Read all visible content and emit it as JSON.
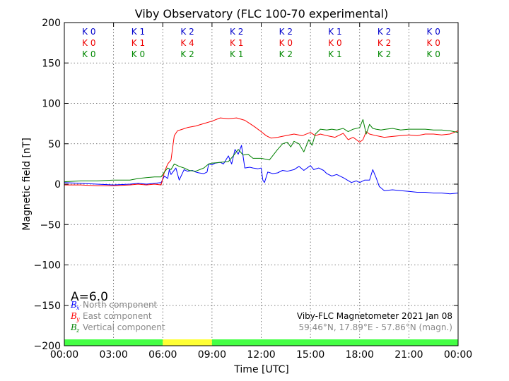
{
  "chart_data": {
    "type": "line",
    "title": "Viby Observatory (FLC 100-70 experimental)",
    "xlabel": "Time [UTC]",
    "ylabel": "Magnetic field [nT]",
    "xlim_hours": [
      0,
      24
    ],
    "ylim": [
      -200,
      200
    ],
    "grid": true,
    "x_ticks": [
      {
        "hour": 0,
        "label": "00:00"
      },
      {
        "hour": 3,
        "label": "03:00"
      },
      {
        "hour": 6,
        "label": "06:00"
      },
      {
        "hour": 9,
        "label": "09:00"
      },
      {
        "hour": 12,
        "label": "12:00"
      },
      {
        "hour": 15,
        "label": "15:00"
      },
      {
        "hour": 18,
        "label": "18:00"
      },
      {
        "hour": 21,
        "label": "21:00"
      },
      {
        "hour": 24,
        "label": "00:00"
      }
    ],
    "y_ticks": [
      {
        "value": 200,
        "label": "200"
      },
      {
        "value": 150,
        "label": "150"
      },
      {
        "value": 100,
        "label": "100"
      },
      {
        "value": 50,
        "label": "50"
      },
      {
        "value": 0,
        "label": "0"
      },
      {
        "value": -50,
        "label": "−50"
      },
      {
        "value": -100,
        "label": "−100"
      },
      {
        "value": -150,
        "label": "−150"
      },
      {
        "value": -200,
        "label": "−200"
      }
    ],
    "k_indices": {
      "x": {
        "color": "#0000cc",
        "labels": [
          "K 0",
          "K 1",
          "K 2",
          "K 2",
          "K 2",
          "K 1",
          "K 2",
          "K 0"
        ]
      },
      "y": {
        "color": "#ee0000",
        "labels": [
          "K 0",
          "K 1",
          "K 4",
          "K 1",
          "K 0",
          "K 0",
          "K 2",
          "K 0"
        ]
      },
      "z": {
        "color": "#008800",
        "labels": [
          "K 0",
          "K 0",
          "K 2",
          "K 1",
          "K 2",
          "K 1",
          "K 2",
          "K 0"
        ]
      }
    },
    "a_index": "A=6.0",
    "legend": {
      "placement": "lower-left",
      "items": [
        {
          "symbol": "B",
          "sub": "x",
          "label": "North component",
          "color": "#0000ff"
        },
        {
          "symbol": "B",
          "sub": "y",
          "label": "East component",
          "color": "#ff0000"
        },
        {
          "symbol": "B",
          "sub": "z",
          "label": "Vertical component",
          "color": "#008000"
        }
      ]
    },
    "station_line1": "Viby-FLC Magnetometer 2021 Jan 08",
    "station_line2": "59.46°N, 17.89°E - 57.86°N (magn.)",
    "activity_bar": [
      {
        "from": 0,
        "to": 6,
        "color": "#44ff44"
      },
      {
        "from": 6,
        "to": 9,
        "color": "#ffff33"
      },
      {
        "from": 9,
        "to": 24,
        "color": "#44ff44"
      }
    ],
    "series": [
      {
        "name": "North component",
        "color": "#0000ff",
        "x": [
          0,
          1,
          2,
          3,
          4,
          4.5,
          5,
          5.5,
          5.9,
          6.1,
          6.3,
          6.4,
          6.5,
          6.8,
          7,
          7.3,
          7.5,
          7.8,
          8,
          8.2,
          8.5,
          8.7,
          8.8,
          9,
          9.2,
          9.5,
          9.7,
          10,
          10.2,
          10.4,
          10.6,
          10.8,
          11,
          11.3,
          11.5,
          11.8,
          12,
          12.1,
          12.2,
          12.4,
          12.7,
          13,
          13.3,
          13.6,
          14,
          14.3,
          14.6,
          15,
          15.2,
          15.5,
          15.8,
          16,
          16.3,
          16.6,
          17,
          17.5,
          17.8,
          18,
          18.3,
          18.6,
          18.8,
          19,
          19.2,
          19.5,
          20,
          20.5,
          21,
          21.5,
          22,
          22.5,
          23,
          23.5,
          24
        ],
        "y": [
          2,
          1,
          0,
          -1,
          0,
          1,
          0,
          1,
          2,
          10,
          7,
          18,
          12,
          20,
          5,
          18,
          16,
          17,
          15,
          14,
          13,
          15,
          25,
          24,
          26,
          27,
          25,
          35,
          25,
          43,
          37,
          48,
          20,
          21,
          20,
          19,
          20,
          5,
          2,
          15,
          13,
          14,
          17,
          16,
          18,
          22,
          17,
          23,
          18,
          20,
          17,
          13,
          10,
          12,
          8,
          2,
          4,
          2,
          5,
          5,
          18,
          8,
          -3,
          -8,
          -7,
          -8,
          -9,
          -10,
          -10,
          -11,
          -11,
          -12,
          -11
        ]
      },
      {
        "name": "East component",
        "color": "#ff0000",
        "x": [
          0,
          1,
          2,
          3,
          4,
          4.5,
          5,
          5.5,
          5.9,
          6.1,
          6.3,
          6.5,
          6.7,
          6.9,
          7.2,
          7.5,
          8,
          8.5,
          9,
          9.5,
          10,
          10.5,
          11,
          11.3,
          11.6,
          12,
          12.3,
          12.6,
          13,
          13.5,
          14,
          14.5,
          15,
          15.3,
          15.6,
          16,
          16.5,
          17,
          17.3,
          17.6,
          18,
          18.2,
          18.4,
          18.6,
          19,
          19.5,
          20,
          20.5,
          21,
          21.5,
          22,
          22.5,
          23,
          23.5,
          24
        ],
        "y": [
          -1,
          -1,
          -2,
          -2,
          -1,
          0,
          -1,
          0,
          -1,
          15,
          25,
          30,
          60,
          66,
          68,
          70,
          72,
          75,
          78,
          82,
          81,
          82,
          79,
          75,
          71,
          65,
          60,
          57,
          58,
          60,
          62,
          60,
          64,
          60,
          62,
          60,
          58,
          63,
          55,
          58,
          52,
          55,
          65,
          62,
          60,
          58,
          59,
          60,
          61,
          60,
          62,
          62,
          61,
          62,
          66
        ]
      },
      {
        "name": "Vertical component",
        "color": "#008000",
        "x": [
          0,
          1,
          2,
          3,
          4,
          4.5,
          5,
          5.5,
          5.9,
          6.1,
          6.3,
          6.5,
          6.7,
          7,
          7.3,
          7.6,
          8,
          8.5,
          8.8,
          9,
          9.5,
          10,
          10.3,
          10.6,
          10.9,
          11.2,
          11.5,
          12,
          12.5,
          13,
          13.3,
          13.6,
          13.8,
          14,
          14.3,
          14.6,
          14.9,
          15.1,
          15.3,
          15.6,
          16,
          16.3,
          16.6,
          17,
          17.3,
          17.6,
          18,
          18.2,
          18.4,
          18.6,
          18.8,
          19,
          19.3,
          19.6,
          20,
          20.5,
          21,
          21.5,
          22,
          22.5,
          23,
          23.5,
          24
        ],
        "y": [
          3,
          4,
          4,
          5,
          5,
          7,
          8,
          9,
          9,
          15,
          20,
          18,
          25,
          22,
          20,
          17,
          16,
          20,
          25,
          26,
          27,
          28,
          35,
          43,
          36,
          37,
          32,
          32,
          30,
          43,
          50,
          52,
          46,
          53,
          50,
          40,
          55,
          48,
          62,
          68,
          67,
          68,
          67,
          69,
          65,
          68,
          70,
          80,
          62,
          74,
          69,
          68,
          67,
          68,
          69,
          67,
          68,
          68,
          68,
          67,
          67,
          66,
          64
        ]
      }
    ]
  }
}
